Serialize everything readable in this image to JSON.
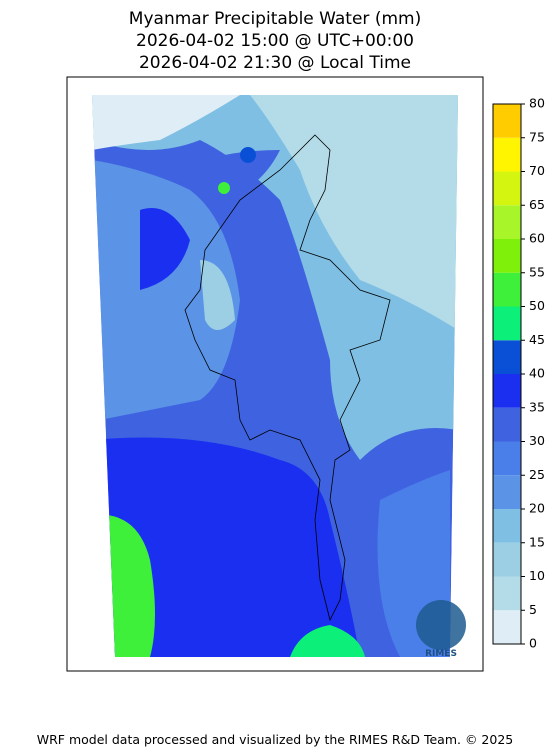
{
  "title": [
    "Myanmar Precipitable Water (mm)",
    "2026-04-02 15:00 @ UTC+00:00",
    "2026-04-02 21:30 @ Local Time"
  ],
  "colorbar": {
    "ticks": [
      0,
      5,
      10,
      15,
      20,
      25,
      30,
      35,
      40,
      45,
      50,
      55,
      60,
      65,
      70,
      75,
      80
    ],
    "colors": [
      "#dfeef6",
      "#b3dce8",
      "#9ccfe3",
      "#7fbfe3",
      "#5b93e6",
      "#4a7ee8",
      "#3f63e0",
      "#1b2ff0",
      "#0a50d6",
      "#0cf07a",
      "#3ef03a",
      "#7ef00a",
      "#a8f52a",
      "#d4f510",
      "#fff500",
      "#ffcc00"
    ]
  },
  "logo_text": "RIMES",
  "footer": "WRF model data processed and visualized by the RIMES R&D Team. © 2025"
}
